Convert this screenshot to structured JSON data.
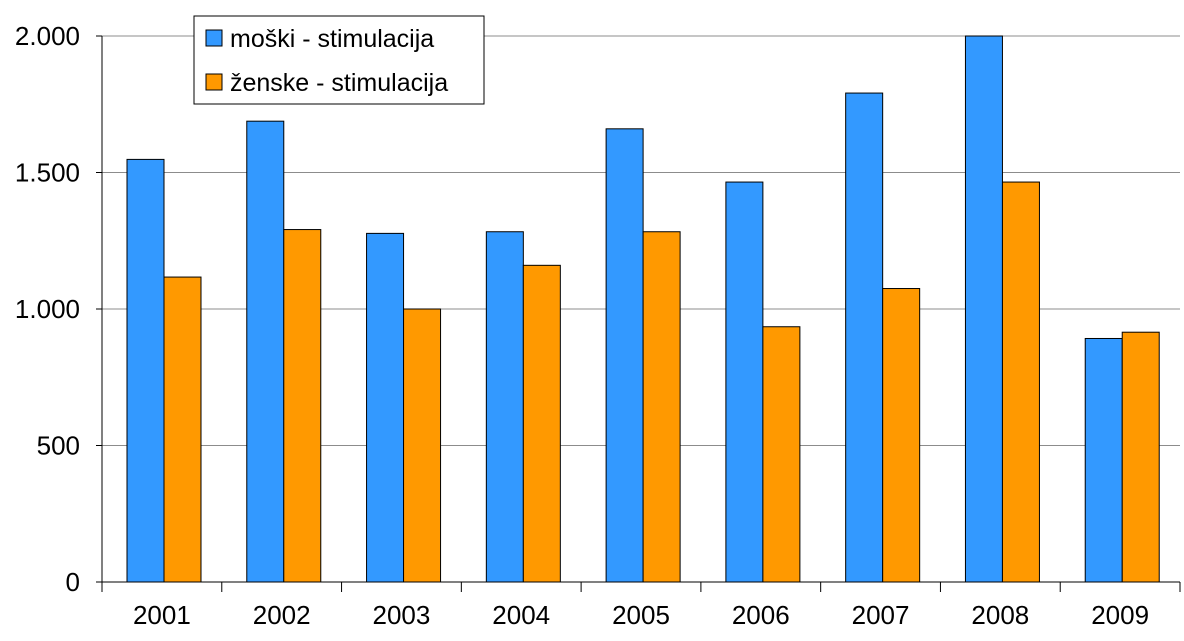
{
  "chart_data": {
    "type": "bar",
    "title": "",
    "xlabel": "",
    "ylabel": "",
    "categories": [
      "2001",
      "2002",
      "2003",
      "2004",
      "2005",
      "2006",
      "2007",
      "2008",
      "2009"
    ],
    "series": [
      {
        "name": "moški - stimulacija",
        "color": "#3399FF",
        "values": [
          1548,
          1688,
          1277,
          1283,
          1660,
          1465,
          1791,
          2000,
          892
        ]
      },
      {
        "name": "ženske - stimulacija",
        "color": "#FF9900",
        "values": [
          1117,
          1291,
          1000,
          1160,
          1283,
          935,
          1075,
          1465,
          915
        ]
      }
    ],
    "ylim": [
      0,
      2000
    ],
    "yticks": [
      0,
      500,
      1000,
      1500,
      2000
    ],
    "ytick_labels": [
      "0",
      "500",
      "1.000",
      "1.500",
      "2.000"
    ],
    "grid": true,
    "legend_position": "top-left"
  }
}
